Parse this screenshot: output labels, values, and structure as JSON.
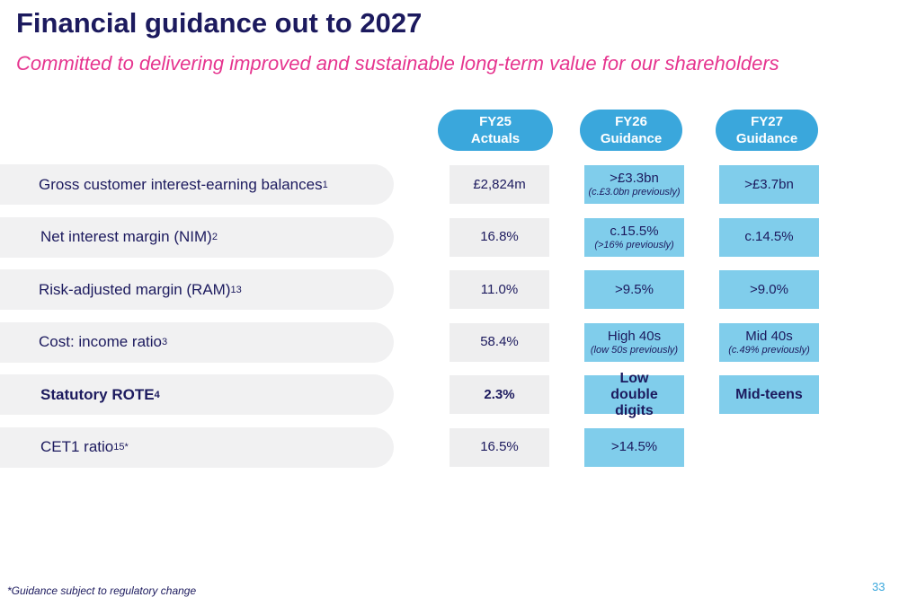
{
  "header": {
    "title": "Financial guidance out to 2027",
    "subtitle": "Committed to delivering improved and sustainable long-term value for our shareholders"
  },
  "columns": [
    {
      "line1": "FY25",
      "line2": "Actuals"
    },
    {
      "line1": "FY26",
      "line2": "Guidance"
    },
    {
      "line1": "FY27",
      "line2": "Guidance"
    }
  ],
  "rows": [
    {
      "label": "Gross customer interest-earning balances",
      "sup": "1",
      "cells": [
        {
          "main": "£2,824m"
        },
        {
          "main": ">£3.3bn",
          "note": "(c.£3.0bn previously)"
        },
        {
          "main": ">£3.7bn"
        }
      ]
    },
    {
      "label": "Net interest margin (NIM)",
      "sup": "2",
      "cells": [
        {
          "main": "16.8%"
        },
        {
          "main": "c.15.5%",
          "note": "(>16% previously)"
        },
        {
          "main": "c.14.5%"
        }
      ]
    },
    {
      "label": "Risk-adjusted margin (RAM)",
      "sup": "13",
      "cells": [
        {
          "main": "11.0%"
        },
        {
          "main": ">9.5%"
        },
        {
          "main": ">9.0%"
        }
      ]
    },
    {
      "label": "Cost: income ratio",
      "sup": "3",
      "cells": [
        {
          "main": "58.4%"
        },
        {
          "main": "High 40s",
          "note": "(low 50s previously)"
        },
        {
          "main": "Mid 40s",
          "note": "(c.49% previously)"
        }
      ]
    },
    {
      "label": "Statutory ROTE",
      "sup": "4",
      "bold": true,
      "cells": [
        {
          "main": "2.3%"
        },
        {
          "main": "Low double digits"
        },
        {
          "main": "Mid-teens"
        }
      ]
    },
    {
      "label": "CET1 ratio",
      "sup": "15*",
      "cells": [
        {
          "main": "16.5%"
        },
        {
          "main": ">14.5%"
        }
      ]
    }
  ],
  "footnote": "*Guidance subject to regulatory change",
  "page_number": 33
}
